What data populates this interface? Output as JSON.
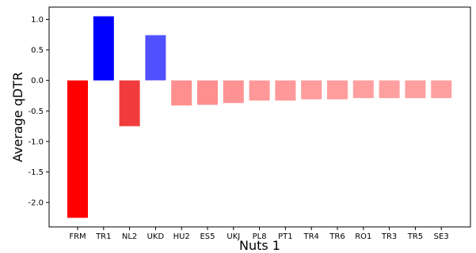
{
  "chart_data": {
    "type": "bar",
    "title": "",
    "xlabel": "Nuts 1",
    "ylabel": "Average qDTR",
    "categories": [
      "FRM",
      "TR1",
      "NL2",
      "UKD",
      "HU2",
      "ES5",
      "UKJ",
      "PL8",
      "PT1",
      "TR4",
      "TR6",
      "RO1",
      "TR3",
      "TR5",
      "SE3"
    ],
    "values": [
      -2.25,
      1.05,
      -0.75,
      0.74,
      -0.41,
      -0.4,
      -0.37,
      -0.33,
      -0.33,
      -0.31,
      -0.31,
      -0.29,
      -0.29,
      -0.29,
      -0.29
    ],
    "colors": [
      "#ff0000",
      "#0000ff",
      "#f03c3c",
      "#5050ff",
      "#ff8f8f",
      "#ff8f8f",
      "#ff9393",
      "#ff9999",
      "#ff9999",
      "#ff9c9c",
      "#ff9c9c",
      "#ff9f9f",
      "#ff9f9f",
      "#ff9f9f",
      "#ff9f9f"
    ],
    "yticks": [
      "1.0",
      "0.5",
      "0.0",
      "-0.5",
      "-1.0",
      "-1.5",
      "-2.0"
    ],
    "ytick_values": [
      1.0,
      0.5,
      0.0,
      -0.5,
      -1.0,
      -1.5,
      -2.0
    ],
    "ylim": [
      -2.4,
      1.2
    ],
    "grid": false,
    "legend": "none"
  }
}
